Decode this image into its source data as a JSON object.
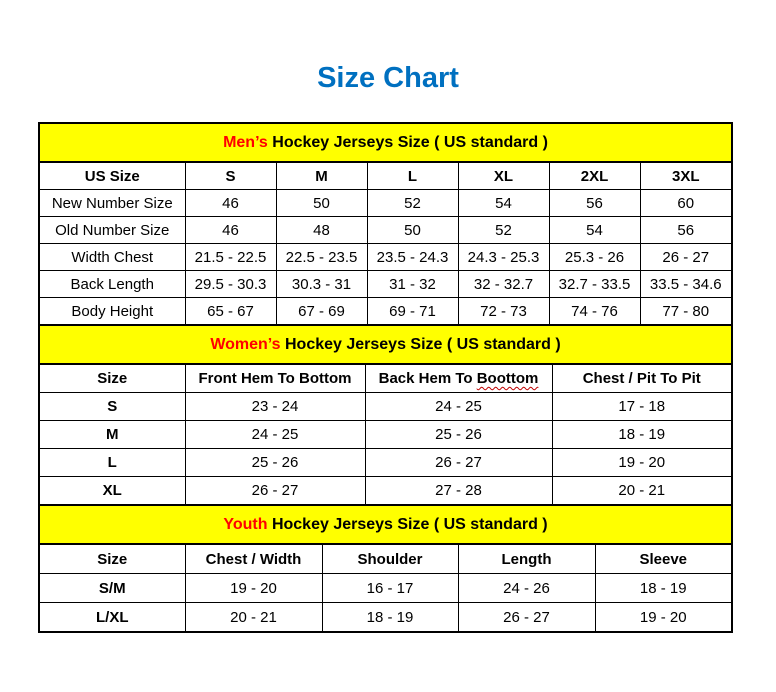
{
  "title": "Size Chart",
  "colors": {
    "title_blue": "#0070C0",
    "band_yellow": "#FFFF00",
    "accent_red": "#FF0000",
    "wavy_underline": "#C00000",
    "border_black": "#000000"
  },
  "tables": [
    {
      "name": "mens",
      "band_accent": "Men’s",
      "band_rest": " Hockey Jerseys Size ( US standard )",
      "columns": [
        "US Size",
        "S",
        "M",
        "L",
        "XL",
        "2XL",
        "3XL"
      ],
      "rows": [
        [
          "New Number Size",
          "46",
          "50",
          "52",
          "54",
          "56",
          "60"
        ],
        [
          "Old Number Size",
          "46",
          "48",
          "50",
          "52",
          "54",
          "56"
        ],
        [
          "Width Chest",
          "21.5 - 22.5",
          "22.5 - 23.5",
          "23.5 - 24.3",
          "24.3 - 25.3",
          "25.3 - 26",
          "26 - 27"
        ],
        [
          "Back Length",
          "29.5 - 30.3",
          "30.3 - 31",
          "31 - 32",
          "32 - 32.7",
          "32.7 - 33.5",
          "33.5 - 34.6"
        ],
        [
          "Body Height",
          "65 - 67",
          "67 - 69",
          "69 - 71",
          "72 - 73",
          "74 - 76",
          "77 - 80"
        ]
      ],
      "wavy": null
    },
    {
      "name": "womens",
      "band_accent": "Women’s",
      "band_rest": " Hockey Jerseys Size ( US standard )",
      "columns": [
        "Size",
        "Front Hem To Bottom",
        "Back Hem To Boottom",
        "Chest / Pit To Pit"
      ],
      "rows": [
        [
          "S",
          "23 - 24",
          "24 - 25",
          "17 - 18"
        ],
        [
          "M",
          "24 - 25",
          "25 - 26",
          "18 - 19"
        ],
        [
          "L",
          "25 - 26",
          "26 - 27",
          "19 - 20"
        ],
        [
          "XL",
          "26 - 27",
          "27 - 28",
          "20 - 21"
        ]
      ],
      "wavy": {
        "column": 2,
        "word": "Boottom"
      }
    },
    {
      "name": "youth",
      "band_accent": "Youth",
      "band_rest": " Hockey Jerseys Size ( US standard )",
      "columns": [
        "Size",
        "Chest / Width",
        "Shoulder",
        "Length",
        "Sleeve"
      ],
      "rows": [
        [
          "S/M",
          "19 - 20",
          "16 - 17",
          "24 - 26",
          "18 - 19"
        ],
        [
          "L/XL",
          "20 - 21",
          "18 - 19",
          "26 - 27",
          "19 - 20"
        ]
      ],
      "wavy": null
    }
  ]
}
